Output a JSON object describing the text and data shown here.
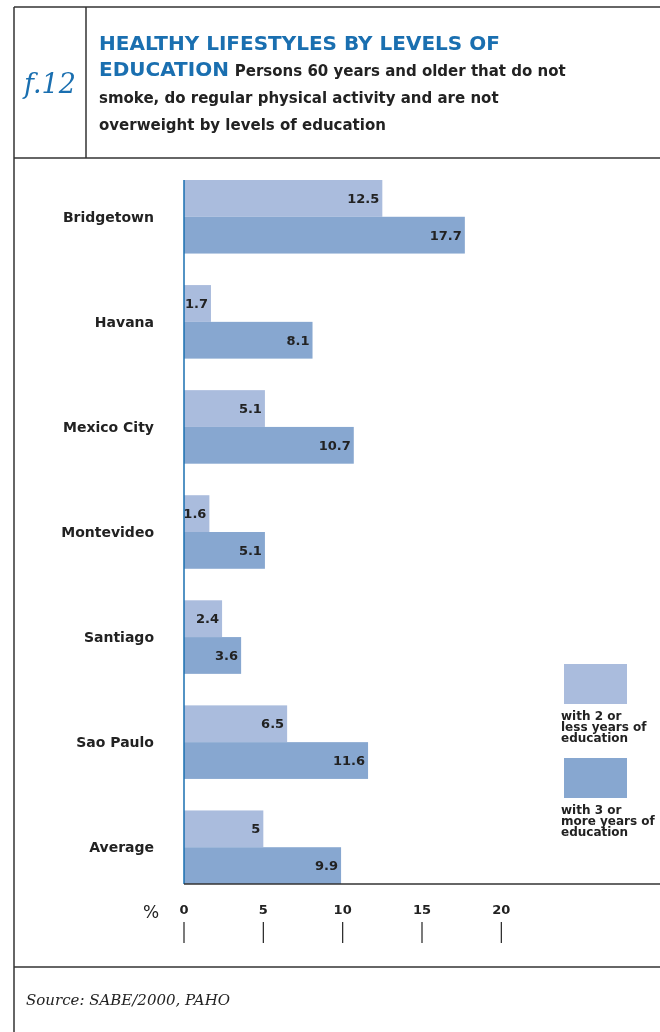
{
  "chart_data": {
    "type": "bar",
    "orientation": "horizontal",
    "title": "HEALTHY LIFESTYLES BY LEVELS OF EDUCATION",
    "subtitle": "Persons 60 years and older that do not smoke, do regular physical activity and are not overweight by levels of education",
    "xlabel": "%",
    "annotations": [
      "f.12",
      "Source: SABE/2000, PAHO"
    ],
    "categories": [
      "Bridgetown",
      "Havana",
      "Mexico City",
      "Montevideo",
      "Santiago",
      "Sao Paulo",
      "Average"
    ],
    "series": [
      {
        "name": "with 2 or less years of education",
        "color": "#aabcdd",
        "values": [
          12.5,
          1.7,
          5.1,
          1.6,
          2.4,
          6.5,
          5
        ]
      },
      {
        "name": "with 3 or more years of education",
        "color": "#87a7d0",
        "values": [
          17.7,
          8.1,
          10.7,
          5.1,
          3.6,
          11.6,
          9.9
        ]
      }
    ],
    "xlim": [
      0,
      30
    ],
    "xticks": [
      0,
      5,
      10,
      15,
      20
    ],
    "data_labels": true,
    "grid": false,
    "legend": "bottom right"
  }
}
